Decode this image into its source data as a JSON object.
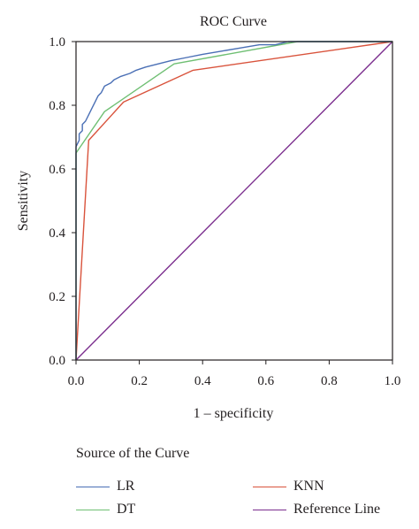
{
  "chart_data": {
    "type": "line",
    "title": "ROC Curve",
    "xlabel": "1 – specificity",
    "ylabel": "Sensitivity",
    "xlim": [
      0.0,
      1.0
    ],
    "ylim": [
      0.0,
      1.0
    ],
    "xticks": [
      "0.0",
      "0.2",
      "0.4",
      "0.6",
      "0.8",
      "1.0"
    ],
    "yticks": [
      "0.0",
      "0.2",
      "0.4",
      "0.6",
      "0.8",
      "1.0"
    ],
    "grid": false,
    "legend_title": "Source of the Curve",
    "legend_position": "bottom",
    "series": [
      {
        "name": "LR",
        "color": "#4a6fb5",
        "points": [
          [
            0,
            0
          ],
          [
            0,
            0.67
          ],
          [
            0.01,
            0.69
          ],
          [
            0.01,
            0.71
          ],
          [
            0.02,
            0.72
          ],
          [
            0.02,
            0.74
          ],
          [
            0.03,
            0.75
          ],
          [
            0.04,
            0.77
          ],
          [
            0.05,
            0.79
          ],
          [
            0.06,
            0.81
          ],
          [
            0.07,
            0.83
          ],
          [
            0.08,
            0.84
          ],
          [
            0.09,
            0.86
          ],
          [
            0.11,
            0.87
          ],
          [
            0.12,
            0.88
          ],
          [
            0.14,
            0.89
          ],
          [
            0.17,
            0.9
          ],
          [
            0.19,
            0.91
          ],
          [
            0.22,
            0.92
          ],
          [
            0.26,
            0.93
          ],
          [
            0.3,
            0.94
          ],
          [
            0.35,
            0.95
          ],
          [
            0.4,
            0.96
          ],
          [
            0.46,
            0.97
          ],
          [
            0.52,
            0.98
          ],
          [
            0.58,
            0.99
          ],
          [
            0.63,
            0.99
          ],
          [
            0.67,
            1.0
          ],
          [
            1.0,
            1.0
          ]
        ]
      },
      {
        "name": "DT",
        "color": "#6fbf73",
        "points": [
          [
            0,
            0
          ],
          [
            0,
            0.65
          ],
          [
            0.09,
            0.78
          ],
          [
            0.31,
            0.93
          ],
          [
            0.7,
            1.0
          ],
          [
            1.0,
            1.0
          ]
        ]
      },
      {
        "name": "KNN",
        "color": "#d9533c",
        "points": [
          [
            0,
            0
          ],
          [
            0.04,
            0.69
          ],
          [
            0.15,
            0.81
          ],
          [
            0.37,
            0.91
          ],
          [
            1.0,
            1.0
          ]
        ]
      },
      {
        "name": "Reference Line",
        "color": "#7b2e8e",
        "points": [
          [
            0,
            0
          ],
          [
            1.0,
            1.0
          ]
        ]
      }
    ]
  }
}
